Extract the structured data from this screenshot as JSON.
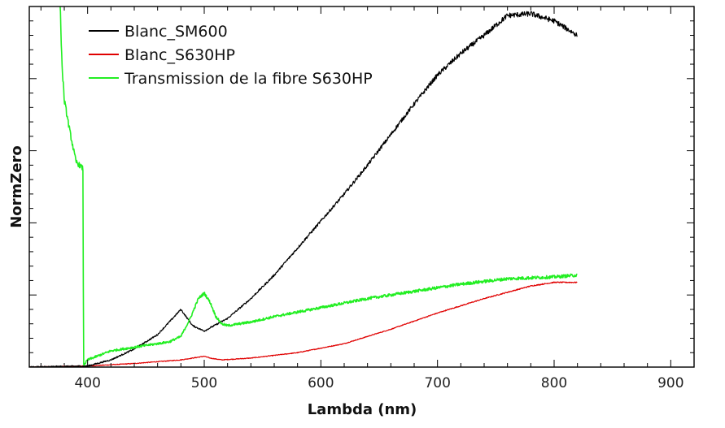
{
  "chart_data": {
    "type": "line",
    "title": "",
    "xlabel": "Lambda (nm)",
    "ylabel": "NormZero",
    "xlim": [
      350,
      920
    ],
    "ylim": [
      0,
      1
    ],
    "x_ticks": [
      400,
      500,
      600,
      700,
      800,
      900
    ],
    "x_tick_labels": [
      "400",
      "500",
      "600",
      "700",
      "800",
      "900"
    ],
    "y_tick_labels_shown": false,
    "grid": false,
    "legend_position": "top-left",
    "series": [
      {
        "name": "Blanc_SM600",
        "color": "#000000",
        "x": [
          350,
          400,
          420,
          440,
          460,
          470,
          480,
          490,
          500,
          520,
          540,
          560,
          580,
          600,
          620,
          640,
          660,
          680,
          700,
          720,
          740,
          760,
          780,
          800,
          820
        ],
        "y": [
          0.0,
          0.003,
          0.02,
          0.05,
          0.09,
          0.125,
          0.16,
          0.115,
          0.1,
          0.135,
          0.19,
          0.255,
          0.33,
          0.405,
          0.48,
          0.56,
          0.645,
          0.73,
          0.81,
          0.87,
          0.92,
          0.975,
          0.98,
          0.96,
          0.92
        ]
      },
      {
        "name": "Blanc_S630HP",
        "color": "#e00000",
        "x": [
          350,
          400,
          440,
          480,
          500,
          505,
          515,
          540,
          580,
          620,
          660,
          700,
          740,
          780,
          800,
          820
        ],
        "y": [
          0.0,
          0.003,
          0.01,
          0.02,
          0.03,
          0.025,
          0.02,
          0.025,
          0.04,
          0.065,
          0.105,
          0.15,
          0.19,
          0.225,
          0.235,
          0.235
        ]
      },
      {
        "name": "Transmission de la fibre S630HP",
        "color": "#22ee22",
        "x": [
          376,
          378,
          380,
          385,
          390,
          393,
          396,
          396.5,
          400,
          420,
          440,
          460,
          470,
          480,
          488,
          495,
          500,
          505,
          510,
          515,
          520,
          540,
          560,
          600,
          640,
          680,
          720,
          760,
          800,
          820
        ],
        "y": [
          1.05,
          0.84,
          0.74,
          0.65,
          0.57,
          0.56,
          0.55,
          0.005,
          0.02,
          0.045,
          0.055,
          0.065,
          0.07,
          0.085,
          0.135,
          0.19,
          0.205,
          0.18,
          0.14,
          0.12,
          0.115,
          0.125,
          0.14,
          0.165,
          0.19,
          0.21,
          0.23,
          0.245,
          0.25,
          0.255
        ]
      }
    ]
  }
}
